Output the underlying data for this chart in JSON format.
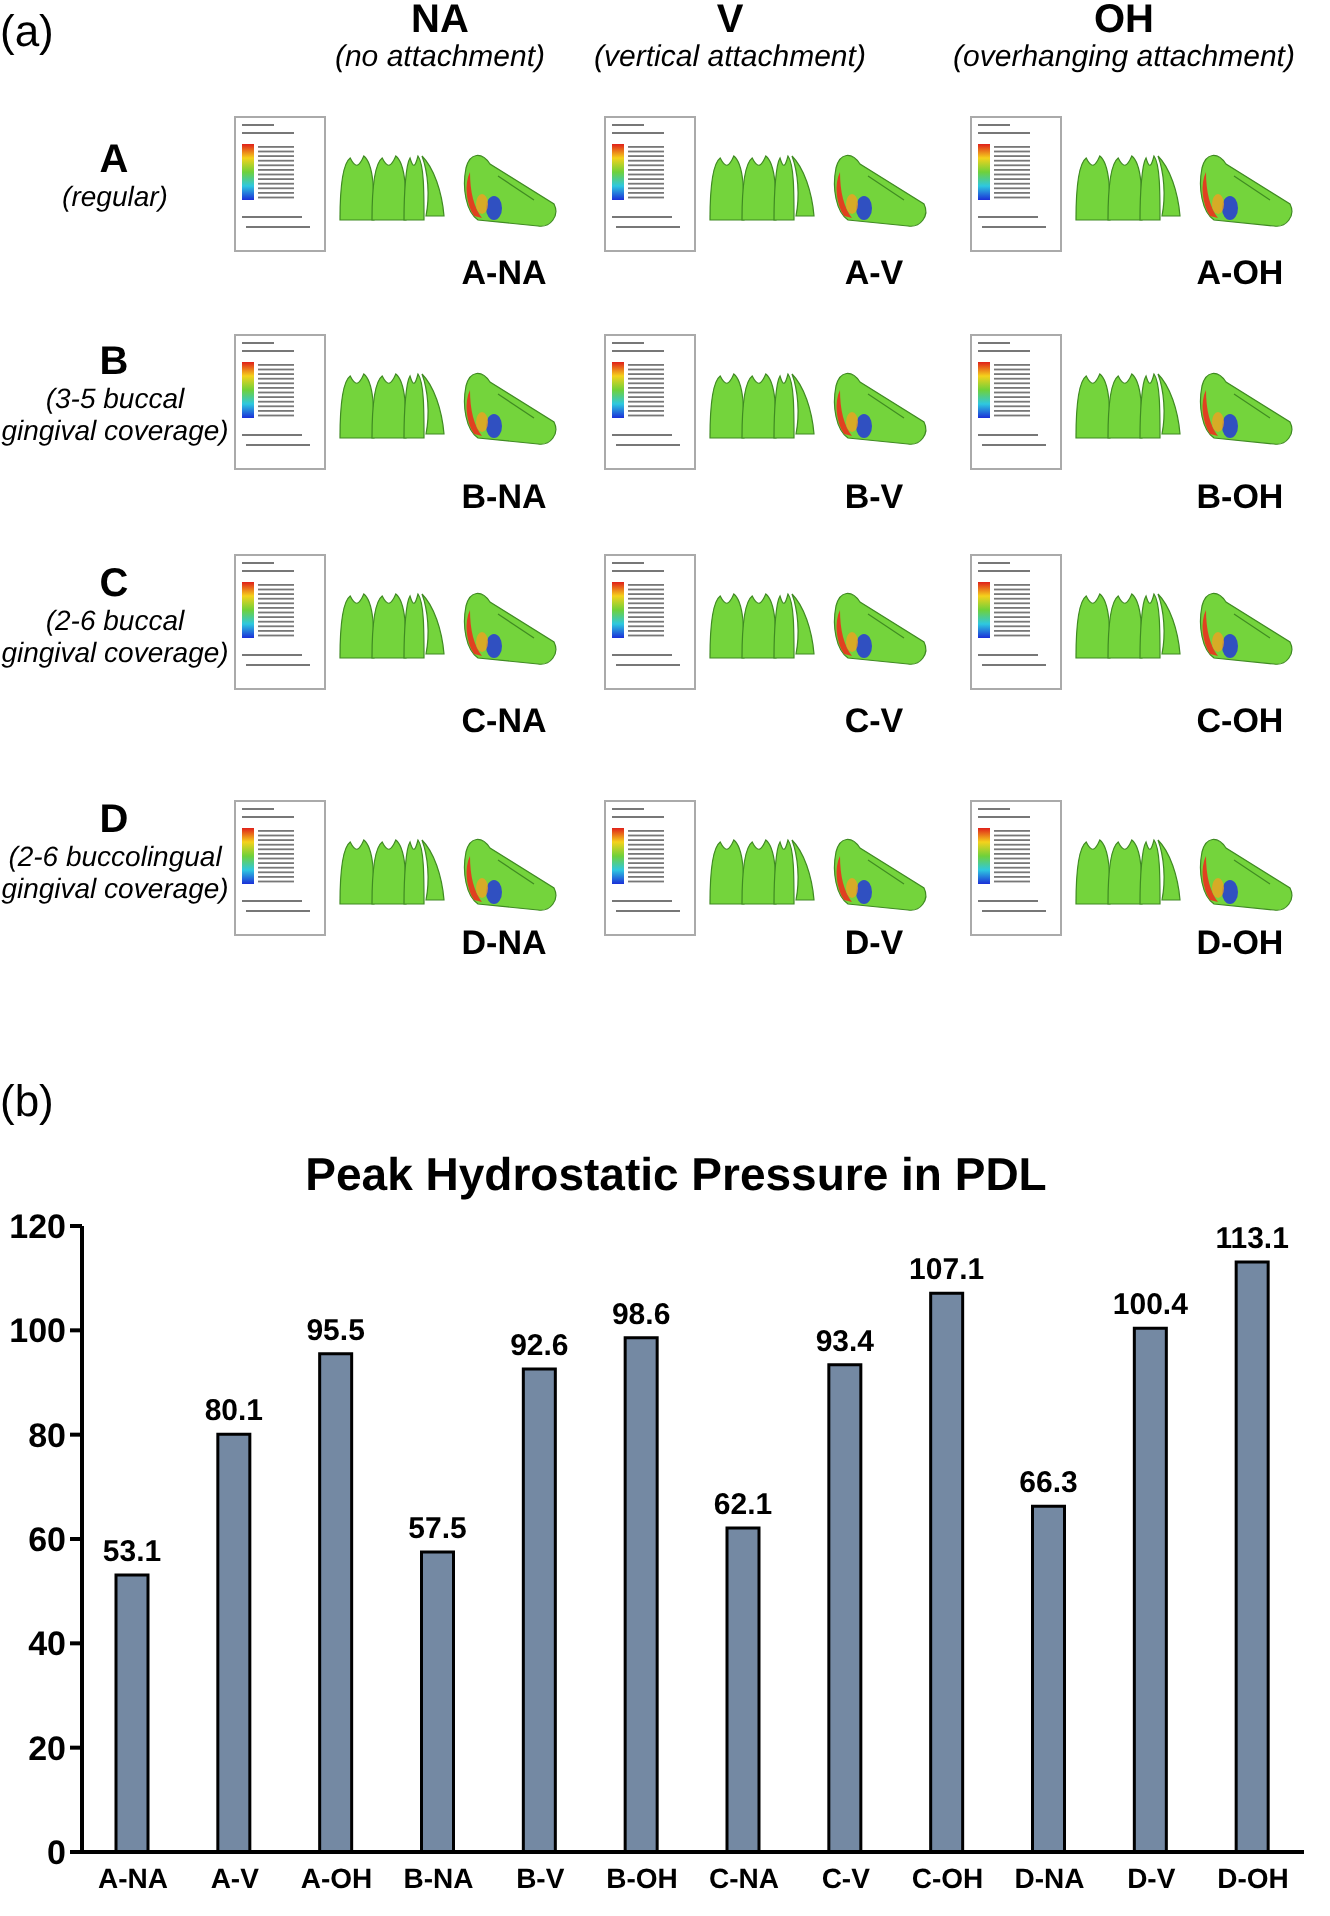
{
  "chart_data": [
    {
      "type": "other",
      "annotations": [
        "(a)",
        "NA",
        "(no attachment)",
        "V",
        "(vertical attachment)",
        "OH",
        "(overhanging attachment)",
        "A",
        "(regular)",
        "B",
        "(3-5 buccal gingival coverage)",
        "C",
        "(2-6 buccal gingival coverage)",
        "D",
        "(2-6 buccolingual gingival coverage)",
        "A-NA",
        "A-V",
        "A-OH",
        "B-NA",
        "B-V",
        "B-OH",
        "C-NA",
        "C-V",
        "C-OH",
        "D-NA",
        "D-V",
        "D-OH"
      ]
    },
    {
      "type": "bar",
      "title": "Peak Hydrostatic Pressure in PDL",
      "annotations": [
        "(b)"
      ],
      "categories": [
        "A-NA",
        "A-V",
        "A-OH",
        "B-NA",
        "B-V",
        "B-OH",
        "C-NA",
        "C-V",
        "C-OH",
        "D-NA",
        "D-V",
        "D-OH"
      ],
      "values": [
        53.1,
        80.1,
        95.5,
        57.5,
        92.6,
        98.6,
        62.1,
        93.4,
        107.1,
        66.3,
        100.4,
        113.1
      ],
      "color": "#7489a3",
      "ylim": [
        0,
        120
      ],
      "yticks": [
        0,
        20,
        40,
        60,
        80,
        100,
        120
      ],
      "data_labels": true
    }
  ]
}
